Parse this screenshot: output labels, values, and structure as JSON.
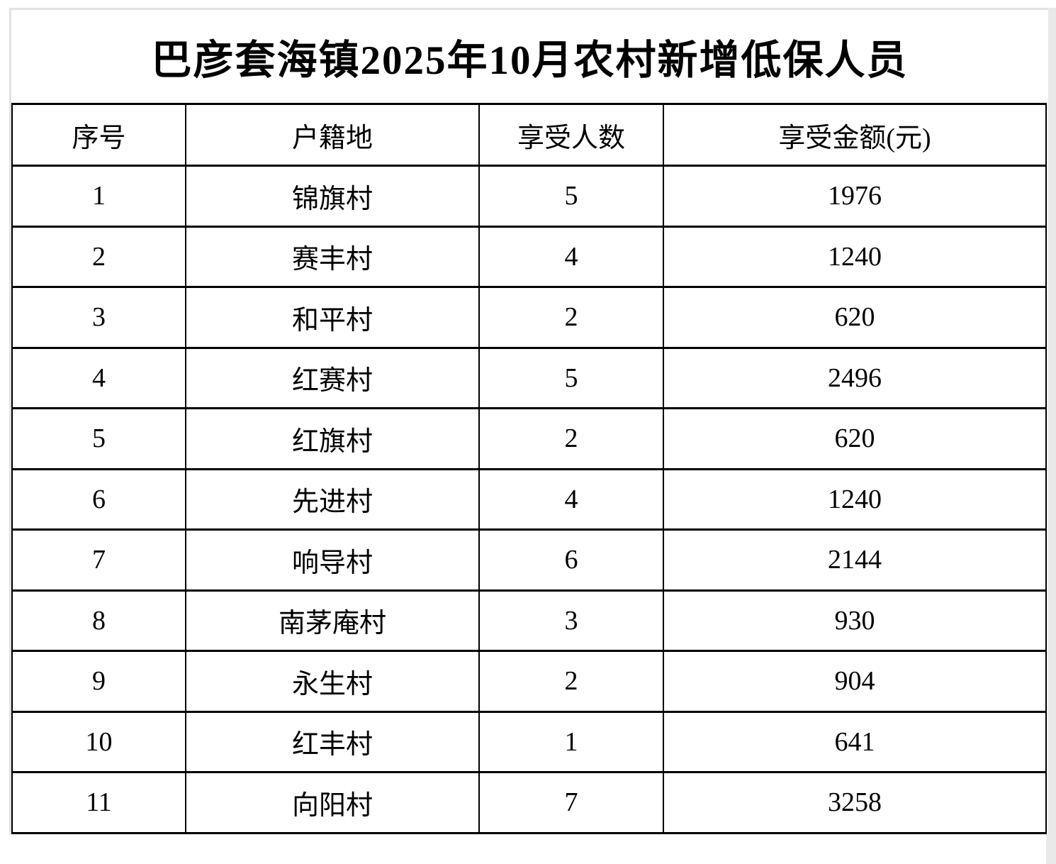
{
  "page": {
    "title": "巴彦套海镇2025年10月农村新增低保人员"
  },
  "table": {
    "columns": [
      "序号",
      "户籍地",
      "享受人数",
      "享受金额(元)"
    ],
    "rows": [
      [
        "1",
        "锦旗村",
        "5",
        "1976"
      ],
      [
        "2",
        "赛丰村",
        "4",
        "1240"
      ],
      [
        "3",
        "和平村",
        "2",
        "620"
      ],
      [
        "4",
        "红赛村",
        "5",
        "2496"
      ],
      [
        "5",
        "红旗村",
        "2",
        "620"
      ],
      [
        "6",
        "先进村",
        "4",
        "1240"
      ],
      [
        "7",
        "响导村",
        "6",
        "2144"
      ],
      [
        "8",
        "南茅庵村",
        "3",
        "930"
      ],
      [
        "9",
        "永生村",
        "2",
        "904"
      ],
      [
        "10",
        "红丰村",
        "1",
        "641"
      ],
      [
        "11",
        "向阳村",
        "7",
        "3258"
      ]
    ]
  },
  "colors": {
    "text": "#000000",
    "table_border": "#000000",
    "page_edge_gray": "#e9e9e9",
    "background": "#ffffff"
  }
}
